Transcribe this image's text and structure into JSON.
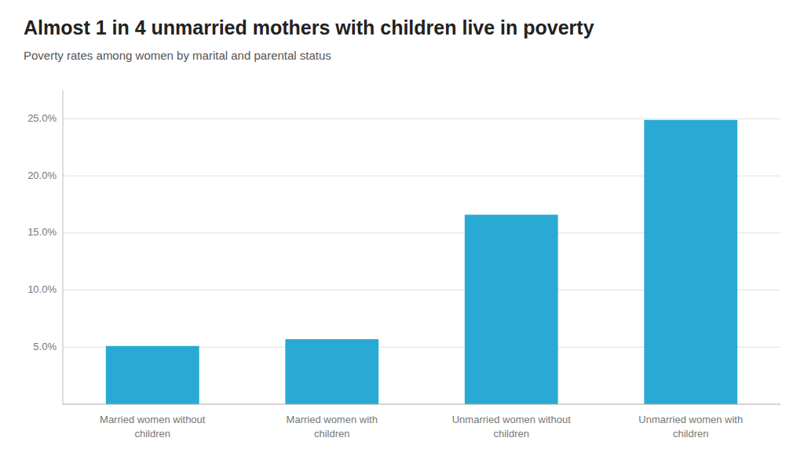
{
  "chart_data": {
    "type": "bar",
    "title": "Almost 1 in 4 unmarried mothers with children live in poverty",
    "subtitle": "Poverty rates among women by marital and parental status",
    "categories": [
      "Married women without\nchildren",
      "Married women with\nchildren",
      "Unmarried women without\nchildren",
      "Unmarried women with\nchildren"
    ],
    "values": [
      5.1,
      5.7,
      16.6,
      24.9
    ],
    "color": "#29aad4",
    "ylim": [
      0,
      27.5
    ],
    "yticks": [
      {
        "value": 5.0,
        "label": "5.0%"
      },
      {
        "value": 10.0,
        "label": "10.0%"
      },
      {
        "value": 15.0,
        "label": "15.0%"
      },
      {
        "value": 20.0,
        "label": "20.0%"
      },
      {
        "value": 25.0,
        "label": "25.0%"
      }
    ],
    "grid": true
  }
}
